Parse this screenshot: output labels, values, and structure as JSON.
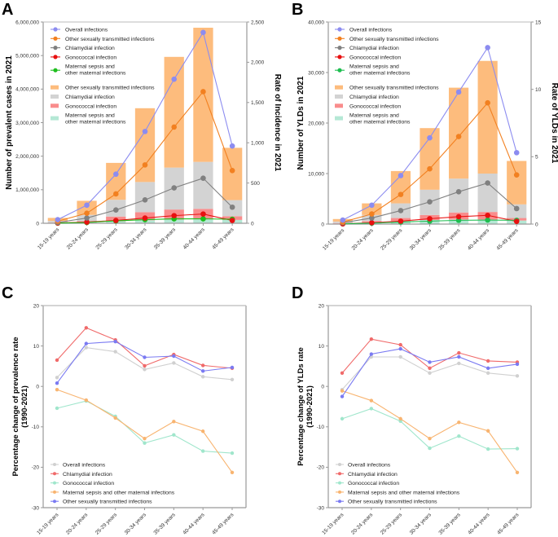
{
  "figure": {
    "panels": [
      "A",
      "B",
      "C",
      "D"
    ]
  },
  "chart_data": [
    {
      "panel": "A",
      "type": "bar",
      "subtype": "stacked-bar-with-line-overlay",
      "categories": [
        "15-19 years",
        "20-24 years",
        "25-29 years",
        "30-34 years",
        "35-39 years",
        "40-44 years",
        "45-49 years"
      ],
      "ylabel": "Number of prevalent cases in 2021",
      "ylabel_right": "Rate of Incidence in 2021",
      "ylim": [
        0,
        6000000
      ],
      "ylim_right": [
        0,
        2500
      ],
      "yticks": [
        "0",
        "1,000,000",
        "2,000,000",
        "3,000,000",
        "4,000,000",
        "5,000,000",
        "6,000,000"
      ],
      "yticks_right": [
        "0",
        "500",
        "1,000",
        "1,500",
        "2,000",
        "2,500"
      ],
      "bar_series": [
        {
          "name": "Maternal sepsis and other maternal infections",
          "color": "#b5e8d5",
          "values": [
            5000,
            20000,
            60000,
            90000,
            110000,
            120000,
            100000
          ]
        },
        {
          "name": "Gonococcal infection",
          "color": "#f98c8c",
          "values": [
            15000,
            40000,
            140000,
            240000,
            300000,
            310000,
            110000
          ]
        },
        {
          "name": "Chlamydial infection",
          "color": "#d3d3d3",
          "values": [
            50000,
            190000,
            500000,
            900000,
            1250000,
            1400000,
            480000
          ]
        },
        {
          "name": "Other sexually transmitted infections",
          "color": "#fdbc7d",
          "values": [
            90000,
            420000,
            1100000,
            2200000,
            3300000,
            4000000,
            1560000
          ]
        }
      ],
      "line_series": [
        {
          "name": "Overall infections",
          "color": "#8c8cf0",
          "values": [
            45,
            225,
            610,
            1140,
            1790,
            2370,
            960
          ]
        },
        {
          "name": "Other sexually transmitted infections",
          "color": "#f28020",
          "values": [
            25,
            125,
            365,
            725,
            1195,
            1635,
            655
          ]
        },
        {
          "name": "Chlamydial infection",
          "color": "#808080",
          "values": [
            10,
            65,
            165,
            290,
            440,
            560,
            200
          ]
        },
        {
          "name": "Gonococcal infection",
          "color": "#e81010",
          "values": [
            3,
            15,
            35,
            65,
            95,
            115,
            35
          ]
        },
        {
          "name": "Maternal sepsis and other maternal infections",
          "color": "#1ebe1e",
          "values": [
            2,
            10,
            30,
            45,
            55,
            55,
            50
          ]
        }
      ],
      "legend": {
        "placement": "top-left",
        "line_entries": [
          "Overall infections",
          "Other sexually transmitted infections",
          "Chlamydial infection",
          "Gonococcal infection",
          "Maternal sepsis and\nother maternal infections"
        ],
        "bar_entries": [
          "Other sexually transmitted infections",
          "Chlamydial infection",
          "Gonococcal infection",
          "Maternal sepsis and\nother maternal infections"
        ]
      }
    },
    {
      "panel": "B",
      "type": "bar",
      "subtype": "stacked-bar-with-line-overlay",
      "categories": [
        "15-19 years",
        "20-24 years",
        "25-29 years",
        "30-34 years",
        "35-39 years",
        "40-44 years",
        "45-49 years"
      ],
      "ylabel": "Number of YLDs in 2021",
      "ylabel_right": "Rate of YLDs in 2021",
      "ylim": [
        0,
        40000
      ],
      "ylim_right": [
        0,
        15
      ],
      "yticks": [
        "0",
        "10,000",
        "20,000",
        "30,000",
        "40,000"
      ],
      "yticks_right": [
        "0",
        "5",
        "10",
        "15"
      ],
      "bar_series": [
        {
          "name": "Maternal sepsis and other maternal infections",
          "color": "#b5e8d5",
          "values": [
            100,
            300,
            600,
            800,
            900,
            900,
            700
          ]
        },
        {
          "name": "Gonococcal infection",
          "color": "#f98c8c",
          "values": [
            100,
            300,
            600,
            1000,
            1400,
            1500,
            500
          ]
        },
        {
          "name": "Chlamydial infection",
          "color": "#d3d3d3",
          "values": [
            300,
            1200,
            2900,
            5000,
            6700,
            7600,
            2700
          ]
        },
        {
          "name": "Other sexually transmitted infections",
          "color": "#fdbc7d",
          "values": [
            500,
            2300,
            6400,
            12200,
            18000,
            22300,
            8600
          ]
        }
      ],
      "line_series": [
        {
          "name": "Overall infections",
          "color": "#8c8cf0",
          "values": [
            0.3,
            1.4,
            3.6,
            6.4,
            9.8,
            13.1,
            5.3
          ]
        },
        {
          "name": "Other sexually transmitted infections",
          "color": "#f28020",
          "values": [
            0.15,
            0.75,
            2.2,
            4.1,
            6.5,
            9.0,
            3.65
          ]
        },
        {
          "name": "Chlamydial infection",
          "color": "#808080",
          "values": [
            0.1,
            0.45,
            1.0,
            1.65,
            2.4,
            3.05,
            1.15
          ]
        },
        {
          "name": "Gonococcal infection",
          "color": "#e81010",
          "values": [
            0.02,
            0.1,
            0.22,
            0.4,
            0.55,
            0.65,
            0.2
          ]
        },
        {
          "name": "Maternal sepsis and other maternal infections",
          "color": "#1ebe50",
          "values": [
            0.02,
            0.07,
            0.15,
            0.22,
            0.28,
            0.3,
            0.28
          ]
        }
      ],
      "legend": {
        "placement": "top-left",
        "line_entries": [
          "Overall infections",
          "Other sexually transmitted infections",
          "Chlamydial infection",
          "Gonococcal infection",
          "Maternal sepsis and\nother maternal infections"
        ],
        "bar_entries": [
          "Other sexually transmitted infections",
          "Chlamydial infection",
          "Gonococcal infection",
          "Maternal sepsis and\nother maternal infections"
        ]
      }
    },
    {
      "panel": "C",
      "type": "line",
      "categories": [
        "15-19 years",
        "20-24 years",
        "25-29 years",
        "30-34 years",
        "35-39 years",
        "40-44 years",
        "45-49 years"
      ],
      "ylabel": "Percentage change of prevalence rate\n(1990-2021)",
      "ylim": [
        -30,
        20
      ],
      "yticks": [
        "-30",
        "-20",
        "-10",
        "0",
        "10",
        "20"
      ],
      "series": [
        {
          "name": "Overall infections",
          "color": "#d0d0d0",
          "values": [
            2.2,
            9.6,
            8.6,
            4.2,
            5.8,
            2.4,
            1.7
          ]
        },
        {
          "name": "Chlamydial infection",
          "color": "#f06a6a",
          "values": [
            6.5,
            14.5,
            11.5,
            5.1,
            7.9,
            5.2,
            4.5
          ]
        },
        {
          "name": "Gonococcal infection",
          "color": "#a0e6cc",
          "values": [
            -5.4,
            -3.6,
            -7.4,
            -14.0,
            -12.0,
            -16.0,
            -16.5
          ]
        },
        {
          "name": "Maternal sepsis and other maternal infections",
          "color": "#f8b470",
          "values": [
            -0.8,
            -3.4,
            -7.8,
            -12.9,
            -8.7,
            -11.1,
            -21.3
          ]
        },
        {
          "name": "Other sexually transmitted infections",
          "color": "#7a7af2",
          "values": [
            0.8,
            10.6,
            11.1,
            7.2,
            7.5,
            3.8,
            4.7
          ]
        }
      ],
      "legend": {
        "placement": "bottom-left"
      }
    },
    {
      "panel": "D",
      "type": "line",
      "categories": [
        "15-19 years",
        "20-24 years",
        "25-29 years",
        "30-34 years",
        "35-39 years",
        "40-44 years",
        "45-49 years"
      ],
      "ylabel": "Percentage change of YLDs rate\n(1990-2021)",
      "ylim": [
        -30,
        20
      ],
      "yticks": [
        "-30",
        "-20",
        "-10",
        "0",
        "10",
        "20"
      ],
      "series": [
        {
          "name": "Overall infections",
          "color": "#d0d0d0",
          "values": [
            -0.8,
            7.3,
            7.3,
            3.3,
            5.7,
            3.3,
            2.6
          ]
        },
        {
          "name": "Chlamydial infection",
          "color": "#f06a6a",
          "values": [
            3.3,
            11.7,
            10.3,
            4.5,
            8.3,
            6.3,
            6.0
          ]
        },
        {
          "name": "Gonococcal infection",
          "color": "#a0e6cc",
          "values": [
            -8.0,
            -5.5,
            -8.6,
            -15.3,
            -12.3,
            -15.5,
            -15.4
          ]
        },
        {
          "name": "Maternal sepsis and other maternal infections",
          "color": "#f8b470",
          "values": [
            -1.1,
            -3.5,
            -8.0,
            -12.9,
            -8.9,
            -11.0,
            -21.3
          ]
        },
        {
          "name": "Other sexually transmitted infections",
          "color": "#7a7af2",
          "values": [
            -2.5,
            8.0,
            9.3,
            6.0,
            7.3,
            4.5,
            5.5
          ]
        }
      ],
      "legend": {
        "placement": "bottom-left"
      }
    }
  ]
}
